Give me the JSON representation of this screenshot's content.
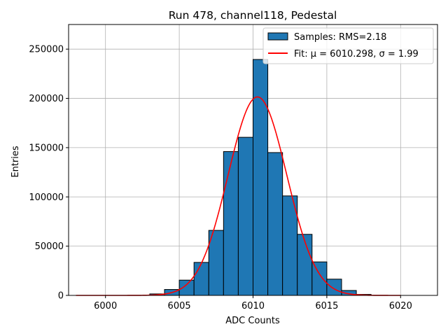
{
  "chart_data": {
    "type": "bar",
    "title": "Run 478, channel118, Pedestal",
    "xlabel": "ADC Counts",
    "ylabel": "Entries",
    "xlim": [
      5997.5,
      6022.5
    ],
    "ylim": [
      0,
      275000
    ],
    "xticks": [
      6000,
      6005,
      6010,
      6015,
      6020
    ],
    "yticks": [
      0,
      50000,
      100000,
      150000,
      200000,
      250000
    ],
    "grid": true,
    "legend_position": "top-right",
    "histogram": {
      "name": "Samples: RMS=2.18",
      "color": "#1f77b4",
      "bins": [
        {
          "x0": 6002,
          "x1": 6003,
          "value": 0
        },
        {
          "x0": 6003,
          "x1": 6004,
          "value": 1500
        },
        {
          "x0": 6004,
          "x1": 6005,
          "value": 6000
        },
        {
          "x0": 6005,
          "x1": 6006,
          "value": 15500
        },
        {
          "x0": 6006,
          "x1": 6007,
          "value": 33500
        },
        {
          "x0": 6007,
          "x1": 6008,
          "value": 66000
        },
        {
          "x0": 6008,
          "x1": 6009,
          "value": 146000
        },
        {
          "x0": 6009,
          "x1": 6010,
          "value": 160500
        },
        {
          "x0": 6010,
          "x1": 6011,
          "value": 239500
        },
        {
          "x0": 6011,
          "x1": 6012,
          "value": 145000
        },
        {
          "x0": 6012,
          "x1": 6013,
          "value": 101000
        },
        {
          "x0": 6013,
          "x1": 6014,
          "value": 62000
        },
        {
          "x0": 6014,
          "x1": 6015,
          "value": 34000
        },
        {
          "x0": 6015,
          "x1": 6016,
          "value": 16500
        },
        {
          "x0": 6016,
          "x1": 6017,
          "value": 5000
        },
        {
          "x0": 6017,
          "x1": 6018,
          "value": 1000
        }
      ]
    },
    "fit": {
      "label": "Fit: μ = 6010.298, σ = 1.99",
      "color": "#ff0000",
      "mu": 6010.298,
      "sigma": 1.99,
      "amplitude": 201500,
      "x_range": [
        5998,
        6020
      ]
    }
  }
}
